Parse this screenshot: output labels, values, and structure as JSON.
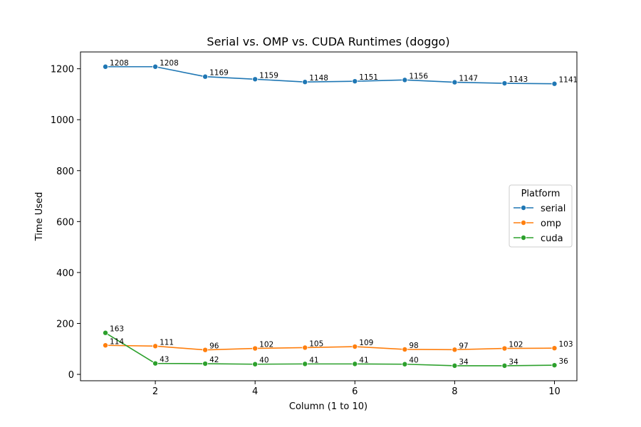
{
  "chart_data": {
    "type": "line",
    "title": "Serial vs. OMP vs. CUDA Runtimes (doggo)",
    "xlabel": "Column (1 to 10)",
    "ylabel": "Time Used",
    "x": [
      1,
      2,
      3,
      4,
      5,
      6,
      7,
      8,
      9,
      10
    ],
    "xlim": [
      0.5,
      10.45
    ],
    "ylim": [
      -25,
      1266
    ],
    "xticks": [
      2,
      4,
      6,
      8,
      10
    ],
    "yticks": [
      0,
      200,
      400,
      600,
      800,
      1000,
      1200
    ],
    "grid": false,
    "legend": {
      "title": "Platform",
      "placement": "center-right"
    },
    "series": [
      {
        "name": "serial",
        "color": "#1f77b4",
        "values": [
          1208,
          1208,
          1169,
          1159,
          1148,
          1151,
          1156,
          1147,
          1143,
          1141
        ]
      },
      {
        "name": "omp",
        "color": "#ff7f0e",
        "values": [
          114,
          111,
          96,
          102,
          105,
          109,
          98,
          97,
          102,
          103
        ]
      },
      {
        "name": "cuda",
        "color": "#2ca02c",
        "values": [
          163,
          43,
          42,
          40,
          41,
          41,
          40,
          34,
          34,
          36
        ]
      }
    ]
  }
}
